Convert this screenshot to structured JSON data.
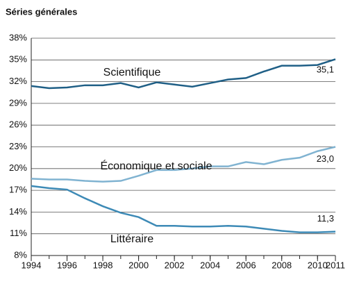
{
  "chart_data": {
    "type": "line",
    "title": "Séries générales",
    "x": [
      1994,
      1995,
      1996,
      1997,
      1998,
      1999,
      2000,
      2001,
      2002,
      2003,
      2004,
      2005,
      2006,
      2007,
      2008,
      2009,
      2010,
      2011
    ],
    "xlim": [
      1994,
      2011
    ],
    "xticks": [
      1994,
      1996,
      1998,
      2000,
      2002,
      2004,
      2006,
      2008,
      2010,
      2011
    ],
    "ylim": [
      8,
      38
    ],
    "yticks": [
      {
        "value": 8,
        "label": "8%"
      },
      {
        "value": 11,
        "label": "11%"
      },
      {
        "value": 14,
        "label": "14%"
      },
      {
        "value": 17,
        "label": "17%"
      },
      {
        "value": 20,
        "label": "20%"
      },
      {
        "value": 23,
        "label": "23%"
      },
      {
        "value": 26,
        "label": "26%"
      },
      {
        "value": 29,
        "label": "29%"
      },
      {
        "value": 32,
        "label": "32%"
      },
      {
        "value": 35,
        "label": "35%"
      },
      {
        "value": 38,
        "label": "38%"
      }
    ],
    "grid": true,
    "series": [
      {
        "name": "Scientifique",
        "color": "#1f5f86",
        "end_label": "35,1",
        "values": [
          31.4,
          31.1,
          31.2,
          31.5,
          31.5,
          31.8,
          31.2,
          31.9,
          31.6,
          31.3,
          31.8,
          32.3,
          32.5,
          33.4,
          34.2,
          34.2,
          34.3,
          35.1
        ]
      },
      {
        "name": "Économique et sociale",
        "color": "#80b3d1",
        "end_label": "23,0",
        "values": [
          18.6,
          18.5,
          18.5,
          18.3,
          18.2,
          18.3,
          19.0,
          19.8,
          19.8,
          20.0,
          20.3,
          20.3,
          20.9,
          20.6,
          21.2,
          21.5,
          22.4,
          23.0
        ]
      },
      {
        "name": "Littéraire",
        "color": "#3d8ab6",
        "end_label": "11,3",
        "values": [
          17.6,
          17.3,
          17.1,
          15.9,
          14.8,
          13.9,
          13.3,
          12.1,
          12.1,
          12.0,
          12.0,
          12.1,
          12.0,
          11.7,
          11.4,
          11.2,
          11.2,
          11.3
        ]
      }
    ]
  }
}
